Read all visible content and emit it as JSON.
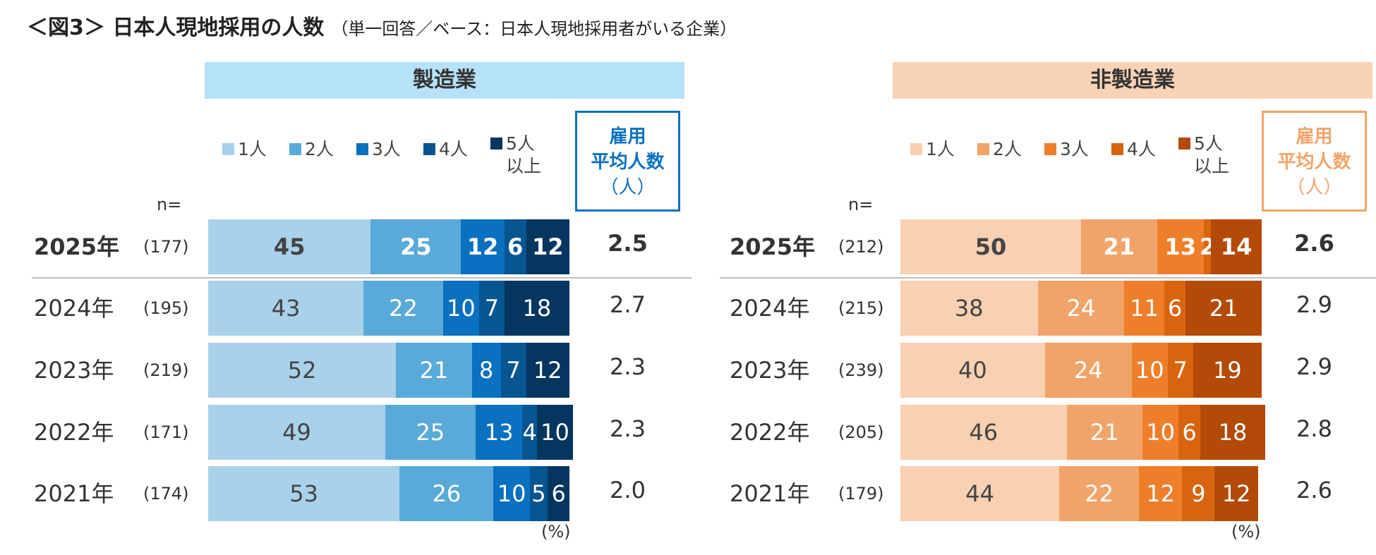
{
  "title": {
    "main": "＜図3＞ 日本人現地採用の人数",
    "sub": "（単一回答／ベース：日本人現地採用者がいる企業）"
  },
  "n_label": "n=",
  "percent_label": "(%)",
  "chart_data": [
    {
      "type": "bar",
      "orientation": "horizontal",
      "stacked": true,
      "title": "製造業",
      "average_header": [
        "雇用",
        "平均人数",
        "（人）"
      ],
      "legend": [
        {
          "name": "1人",
          "color": "#a9d1ea"
        },
        {
          "name": "2人",
          "color": "#5aaad9"
        },
        {
          "name": "3人",
          "color": "#0a70c0"
        },
        {
          "name": "4人",
          "color": "#075591"
        },
        {
          "name": "5人以上",
          "l1": "5人",
          "l2": "以上",
          "color": "#05365f"
        }
      ],
      "xlim": [
        0,
        100
      ],
      "rows": [
        {
          "year": "2025年",
          "n": "(177)",
          "values": [
            45,
            25,
            12,
            6,
            12
          ],
          "average": "2.5",
          "bold": true
        },
        {
          "year": "2024年",
          "n": "(195)",
          "values": [
            43,
            22,
            10,
            7,
            18
          ],
          "average": "2.7",
          "bold": false
        },
        {
          "year": "2023年",
          "n": "(219)",
          "values": [
            52,
            21,
            8,
            7,
            12
          ],
          "average": "2.3",
          "bold": false
        },
        {
          "year": "2022年",
          "n": "(171)",
          "values": [
            49,
            25,
            13,
            4,
            10
          ],
          "average": "2.3",
          "bold": false
        },
        {
          "year": "2021年",
          "n": "(174)",
          "values": [
            53,
            26,
            10,
            5,
            6
          ],
          "average": "2.0",
          "bold": false
        }
      ]
    },
    {
      "type": "bar",
      "orientation": "horizontal",
      "stacked": true,
      "title": "非製造業",
      "average_header": [
        "雇用",
        "平均人数",
        "（人）"
      ],
      "legend": [
        {
          "name": "1人",
          "color": "#f8d0b2"
        },
        {
          "name": "2人",
          "color": "#f1a469"
        },
        {
          "name": "3人",
          "color": "#ef7e2b"
        },
        {
          "name": "4人",
          "color": "#d96410"
        },
        {
          "name": "5人以上",
          "l1": "5人",
          "l2": "以上",
          "color": "#b34a08"
        }
      ],
      "xlim": [
        0,
        100
      ],
      "rows": [
        {
          "year": "2025年",
          "n": "(212)",
          "values": [
            50,
            21,
            13,
            2,
            14
          ],
          "average": "2.6",
          "bold": true
        },
        {
          "year": "2024年",
          "n": "(215)",
          "values": [
            38,
            24,
            11,
            6,
            21
          ],
          "average": "2.9",
          "bold": false
        },
        {
          "year": "2023年",
          "n": "(239)",
          "values": [
            40,
            24,
            10,
            7,
            19
          ],
          "average": "2.9",
          "bold": false
        },
        {
          "year": "2022年",
          "n": "(205)",
          "values": [
            46,
            21,
            10,
            6,
            18
          ],
          "average": "2.8",
          "bold": false
        },
        {
          "year": "2021年",
          "n": "(179)",
          "values": [
            44,
            22,
            12,
            9,
            12
          ],
          "average": "2.6",
          "bold": false
        }
      ]
    }
  ],
  "colors": {
    "header_left": "#b6e2f8",
    "header_right": "#f8d3b6",
    "avg_left": "#0a70c0",
    "avg_right": "#f1a469",
    "label_dark": "#444444",
    "label_light": "#ffffff"
  }
}
